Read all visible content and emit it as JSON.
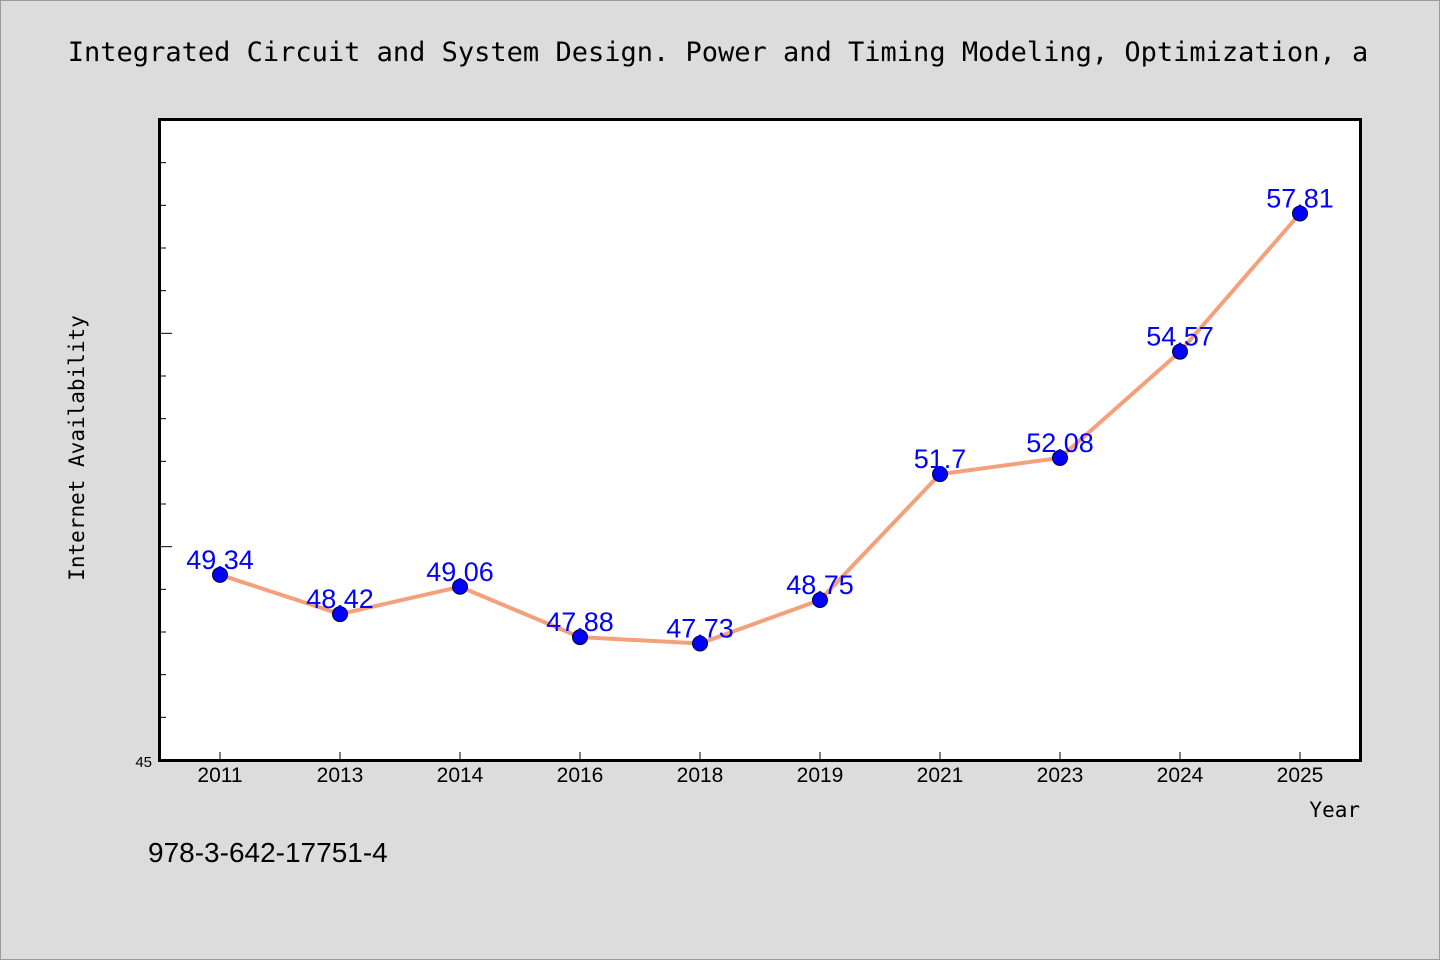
{
  "chart_data": {
    "type": "line",
    "title": "Integrated Circuit and System Design. Power and Timing Modeling, Optimization, a",
    "xlabel": "Year",
    "ylabel": "Internet Availability",
    "categories": [
      "2011",
      "2013",
      "2014",
      "2016",
      "2018",
      "2019",
      "2021",
      "2023",
      "2024",
      "2025"
    ],
    "series": [
      {
        "values": [
          49.34,
          48.42,
          49.06,
          47.88,
          47.73,
          48.75,
          51.7,
          52.08,
          54.57,
          57.81
        ],
        "data_labels": [
          "49.34",
          "48.42",
          "49.06",
          "47.88",
          "47.73",
          "48.75",
          "51.7",
          "52.08",
          "54.57",
          "57.81"
        ]
      }
    ],
    "ylim": [
      45,
      60
    ],
    "y_tick_labels": [
      "45"
    ],
    "grid": false,
    "colors": {
      "line": "#f4a07a",
      "marker": "#0000ff",
      "data_label": "#0000ff",
      "background": "#dcdcdc",
      "plot_area": "#ffffff"
    }
  },
  "footer": {
    "isbn": "978-3-642-17751-4"
  }
}
